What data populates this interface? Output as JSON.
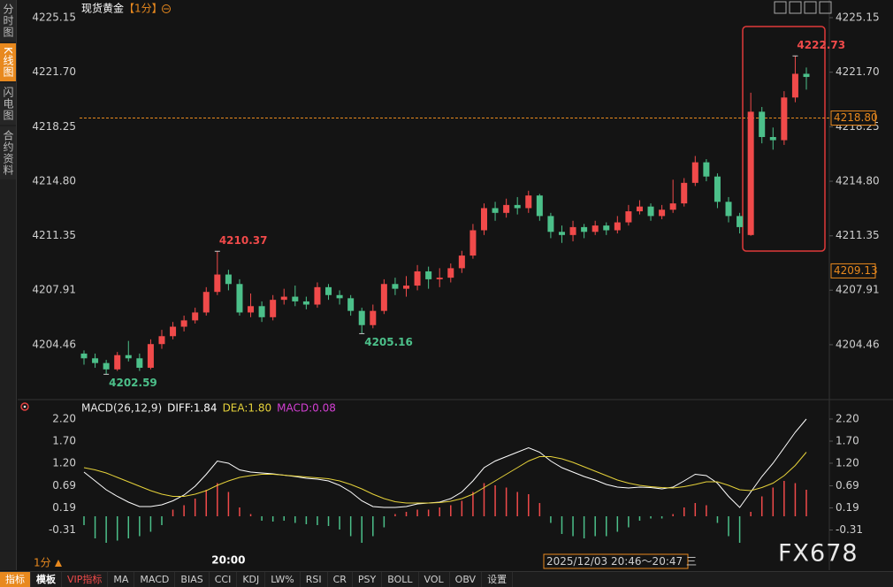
{
  "sidebar": [
    "分时图",
    "K线图",
    "闪电图",
    "合约资料"
  ],
  "header": {
    "title": "现货黄金",
    "period": "【1分】"
  },
  "footer": {
    "period": "1分",
    "time_range": "2025/12/03 20:46～20:47 三",
    "watermark": "FX678"
  },
  "toolbar": {
    "tabs": [
      "指标",
      "模板",
      "VIP指标",
      "MA",
      "MACD",
      "BIAS",
      "CCI",
      "KDJ",
      "LW%",
      "RSI",
      "CR",
      "PSY",
      "BOLL",
      "VOL",
      "OBV",
      "设置"
    ]
  },
  "chart_data": [
    {
      "type": "candlestick",
      "up_color": "#f04a4a",
      "down_color": "#4cc08a",
      "ylim": [
        4201.1,
        4225.15
      ],
      "yticks": [
        4225.15,
        {
          "value": 4221.7,
          "label": "4221.70"
        },
        4218.25,
        {
          "value": 4214.8,
          "label": "4214.80"
        },
        4211.35,
        4207.91,
        4204.46
      ],
      "price_lines": [
        {
          "value": 4218.8,
          "label": "4218.80",
          "dashed": true,
          "color": "#e8891e"
        },
        {
          "value": 4209.13,
          "label": "4209.13",
          "dashed": false,
          "color": "#e8891e"
        }
      ],
      "ohlc": [
        [
          4203.9,
          4204.1,
          4203.2,
          4203.6
        ],
        [
          4203.6,
          4203.9,
          4203.0,
          4203.3
        ],
        [
          4203.3,
          4203.5,
          4202.59,
          4202.9
        ],
        [
          4202.9,
          4204.0,
          4202.8,
          4203.8
        ],
        [
          4203.8,
          4204.7,
          4203.4,
          4203.6
        ],
        [
          4203.6,
          4203.9,
          4202.8,
          4203.0
        ],
        [
          4203.0,
          4204.8,
          4202.9,
          4204.5
        ],
        [
          4204.5,
          4205.4,
          4204.2,
          4205.0
        ],
        [
          4205.0,
          4205.9,
          4204.8,
          4205.6
        ],
        [
          4205.6,
          4206.3,
          4205.3,
          4206.0
        ],
        [
          4206.0,
          4206.8,
          4205.8,
          4206.5
        ],
        [
          4206.5,
          4208.1,
          4206.3,
          4207.8
        ],
        [
          4207.8,
          4210.37,
          4207.6,
          4208.9
        ],
        [
          4208.9,
          4209.2,
          4207.9,
          4208.3
        ],
        [
          4208.3,
          4208.6,
          4206.3,
          4206.5
        ],
        [
          4206.5,
          4207.7,
          4206.2,
          4206.9
        ],
        [
          4206.9,
          4207.2,
          4205.9,
          4206.2
        ],
        [
          4206.2,
          4207.6,
          4206.0,
          4207.3
        ],
        [
          4207.3,
          4208.0,
          4207.0,
          4207.5
        ],
        [
          4207.5,
          4208.2,
          4206.9,
          4207.2
        ],
        [
          4207.2,
          4207.5,
          4206.7,
          4207.0
        ],
        [
          4207.0,
          4208.4,
          4206.8,
          4208.1
        ],
        [
          4208.1,
          4208.3,
          4207.3,
          4207.6
        ],
        [
          4207.6,
          4207.9,
          4207.0,
          4207.4
        ],
        [
          4207.4,
          4207.6,
          4206.3,
          4206.6
        ],
        [
          4206.6,
          4206.8,
          4205.16,
          4205.7
        ],
        [
          4205.7,
          4207.0,
          4205.5,
          4206.6
        ],
        [
          4206.6,
          4208.6,
          4206.4,
          4208.3
        ],
        [
          4208.3,
          4208.7,
          4207.6,
          4208.0
        ],
        [
          4208.0,
          4208.8,
          4207.5,
          4208.2
        ],
        [
          4208.2,
          4209.5,
          4207.9,
          4209.1
        ],
        [
          4209.1,
          4209.4,
          4208.0,
          4208.6
        ],
        [
          4208.6,
          4209.3,
          4208.1,
          4208.7
        ],
        [
          4208.7,
          4209.6,
          4208.4,
          4209.3
        ],
        [
          4209.3,
          4210.4,
          4209.0,
          4210.1
        ],
        [
          4210.1,
          4212.1,
          4209.9,
          4211.7
        ],
        [
          4211.7,
          4213.4,
          4211.4,
          4213.1
        ],
        [
          4213.1,
          4213.5,
          4212.3,
          4212.8
        ],
        [
          4212.8,
          4213.7,
          4212.5,
          4213.3
        ],
        [
          4213.3,
          4213.8,
          4212.7,
          4213.1
        ],
        [
          4213.1,
          4214.2,
          4212.8,
          4213.9
        ],
        [
          4213.9,
          4214.0,
          4212.3,
          4212.6
        ],
        [
          4212.6,
          4212.8,
          4211.2,
          4211.6
        ],
        [
          4211.6,
          4212.0,
          4210.9,
          4211.4
        ],
        [
          4211.4,
          4212.3,
          4211.0,
          4211.9
        ],
        [
          4211.9,
          4212.1,
          4211.2,
          4211.6
        ],
        [
          4211.6,
          4212.3,
          4211.4,
          4212.0
        ],
        [
          4212.0,
          4212.2,
          4211.4,
          4211.7
        ],
        [
          4211.7,
          4212.6,
          4211.5,
          4212.2
        ],
        [
          4212.2,
          4213.3,
          4212.0,
          4212.9
        ],
        [
          4212.9,
          4213.6,
          4212.7,
          4213.2
        ],
        [
          4213.2,
          4213.4,
          4212.3,
          4212.6
        ],
        [
          4212.6,
          4213.3,
          4212.4,
          4213.0
        ],
        [
          4213.0,
          4214.9,
          4212.8,
          4213.4
        ],
        [
          4213.4,
          4215.0,
          4213.2,
          4214.7
        ],
        [
          4214.7,
          4216.4,
          4214.5,
          4216.0
        ],
        [
          4216.0,
          4216.2,
          4214.8,
          4215.1
        ],
        [
          4215.1,
          4215.3,
          4213.1,
          4213.5
        ],
        [
          4213.5,
          4213.8,
          4212.2,
          4212.6
        ],
        [
          4212.6,
          4212.8,
          4211.5,
          4211.9
        ],
        [
          4211.4,
          4220.4,
          4211.35,
          4219.2
        ],
        [
          4219.2,
          4219.5,
          4217.2,
          4217.6
        ],
        [
          4217.6,
          4218.2,
          4216.8,
          4217.4
        ],
        [
          4217.4,
          4220.5,
          4217.1,
          4220.1
        ],
        [
          4220.1,
          4222.73,
          4219.8,
          4221.6
        ],
        [
          4221.6,
          4222.0,
          4220.6,
          4221.4
        ]
      ],
      "value_labels": [
        null,
        null,
        "4202.59",
        null,
        null,
        null,
        null,
        null,
        null,
        null,
        null,
        null,
        "4210.37",
        null,
        null,
        null,
        null,
        null,
        null,
        null,
        null,
        null,
        null,
        null,
        null,
        "4205.16",
        null,
        null,
        null,
        null,
        null,
        null,
        null,
        null,
        null,
        null,
        null,
        null,
        null,
        null,
        null,
        null,
        null,
        null,
        null,
        null,
        null,
        null,
        null,
        null,
        null,
        null,
        null,
        null,
        null,
        null,
        null,
        null,
        null,
        null,
        null,
        null,
        null,
        null,
        "4222.73",
        null
      ]
    },
    {
      "type": "macd",
      "title": "MACD(26,12,9)",
      "up_color": "#f04a4a",
      "down_color": "#4cc08a",
      "ylim": [
        -0.82,
        2.2
      ],
      "yticks": [
        {
          "value": 2.2,
          "label": "2.20"
        },
        {
          "value": 1.7,
          "label": "1.70"
        },
        {
          "value": 1.2,
          "label": "1.20"
        },
        0.69,
        0.19,
        -0.31
      ],
      "categories": [
        null,
        null,
        null,
        null,
        null,
        null,
        null,
        null,
        null,
        null,
        null,
        null,
        null,
        "20:00",
        null,
        null,
        null,
        null,
        null,
        null,
        null,
        null,
        null,
        null,
        null,
        null,
        null,
        null,
        null,
        null,
        null,
        null,
        null,
        null,
        null,
        null,
        null,
        null,
        null,
        null,
        null,
        null,
        null,
        null,
        null,
        null,
        null,
        null,
        null,
        null,
        null,
        null,
        null,
        null,
        null,
        null,
        null,
        null,
        null,
        null,
        null,
        null,
        null,
        null,
        null,
        null
      ],
      "series": [
        {
          "name": "DIFF:1.84",
          "color": "#ffffff",
          "kind": "line",
          "values": [
            1.0,
            0.8,
            0.6,
            0.45,
            0.32,
            0.22,
            0.22,
            0.26,
            0.35,
            0.48,
            0.68,
            0.95,
            1.25,
            1.2,
            1.05,
            1.0,
            0.98,
            0.96,
            0.93,
            0.9,
            0.86,
            0.84,
            0.8,
            0.7,
            0.55,
            0.35,
            0.22,
            0.2,
            0.2,
            0.22,
            0.28,
            0.3,
            0.32,
            0.4,
            0.55,
            0.8,
            1.1,
            1.25,
            1.35,
            1.45,
            1.55,
            1.45,
            1.25,
            1.1,
            1.0,
            0.9,
            0.82,
            0.72,
            0.66,
            0.64,
            0.66,
            0.65,
            0.62,
            0.66,
            0.8,
            0.95,
            0.92,
            0.75,
            0.45,
            0.2,
            0.55,
            0.9,
            1.2,
            1.55,
            1.9,
            2.2
          ]
        },
        {
          "name": "DEA:1.80",
          "color": "#e6d23a",
          "kind": "line",
          "values": [
            1.1,
            1.05,
            0.98,
            0.88,
            0.78,
            0.68,
            0.58,
            0.5,
            0.45,
            0.45,
            0.5,
            0.58,
            0.7,
            0.8,
            0.88,
            0.92,
            0.95,
            0.95,
            0.93,
            0.91,
            0.89,
            0.87,
            0.85,
            0.8,
            0.72,
            0.62,
            0.5,
            0.4,
            0.33,
            0.3,
            0.3,
            0.3,
            0.31,
            0.34,
            0.4,
            0.5,
            0.65,
            0.8,
            0.95,
            1.1,
            1.25,
            1.35,
            1.35,
            1.3,
            1.22,
            1.12,
            1.02,
            0.92,
            0.82,
            0.75,
            0.7,
            0.67,
            0.65,
            0.64,
            0.67,
            0.72,
            0.78,
            0.78,
            0.7,
            0.6,
            0.58,
            0.65,
            0.75,
            0.92,
            1.15,
            1.45
          ]
        },
        {
          "name": "MACD:0.08",
          "color": "#d23fd2",
          "kind": "histogram",
          "values": [
            -0.2,
            -0.5,
            -0.6,
            -0.55,
            -0.5,
            -0.45,
            -0.35,
            -0.2,
            0.15,
            0.25,
            0.4,
            0.6,
            0.75,
            0.55,
            0.2,
            0.05,
            -0.1,
            -0.12,
            -0.1,
            -0.15,
            -0.18,
            -0.2,
            -0.22,
            -0.3,
            -0.45,
            -0.6,
            -0.45,
            -0.25,
            0.05,
            0.1,
            0.15,
            0.15,
            0.2,
            0.25,
            0.35,
            0.55,
            0.75,
            0.7,
            0.65,
            0.55,
            0.5,
            0.3,
            -0.15,
            -0.4,
            -0.45,
            -0.5,
            -0.45,
            -0.45,
            -0.35,
            -0.25,
            -0.1,
            -0.05,
            -0.05,
            0.05,
            0.2,
            0.3,
            0.25,
            -0.15,
            -0.45,
            -0.6,
            0.1,
            0.45,
            0.65,
            0.8,
            0.75,
            0.6
          ]
        }
      ]
    }
  ]
}
